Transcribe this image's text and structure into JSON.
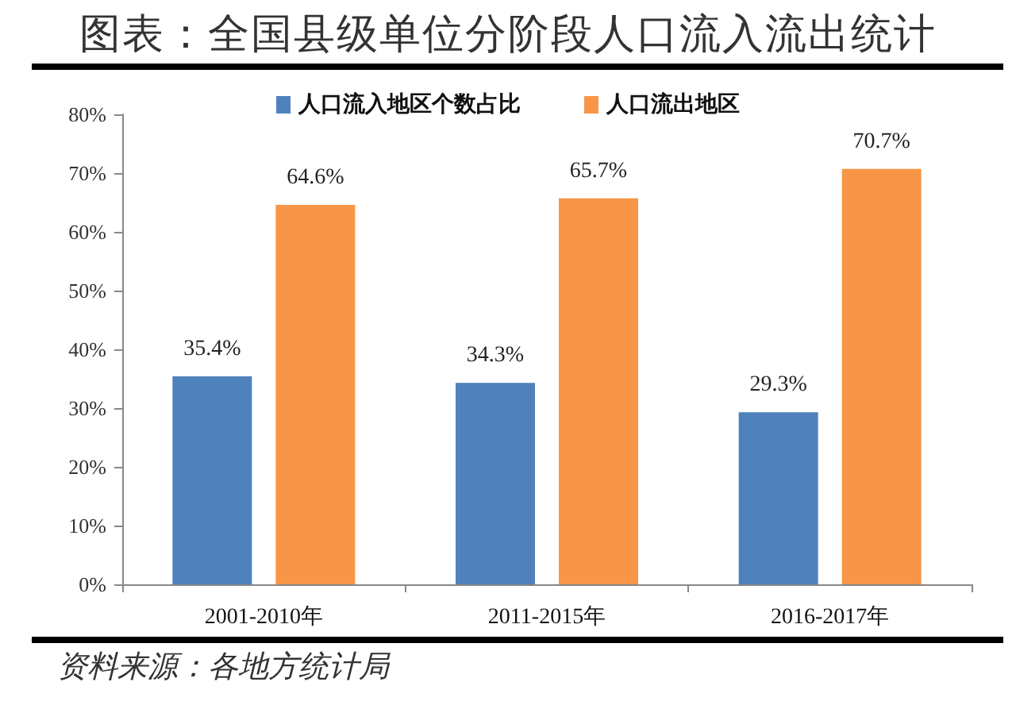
{
  "chart_data": {
    "type": "bar",
    "title": "图表：全国县级单位分阶段人口流入流出统计",
    "categories": [
      "2001-2010年",
      "2011-2015年",
      "2016-2017年"
    ],
    "series": [
      {
        "name": "人口流入地区个数占比",
        "color": "#4f81bd",
        "values": [
          35.4,
          34.3,
          29.3
        ],
        "value_labels": [
          "35.4%",
          "34.3%",
          "29.3%"
        ]
      },
      {
        "name": "人口流出地区",
        "color": "#f79646",
        "values": [
          64.6,
          65.7,
          70.7
        ],
        "value_labels": [
          "64.6%",
          "65.7%",
          "70.7%"
        ]
      }
    ],
    "ylim": [
      0,
      80
    ],
    "yticks": [
      {
        "value": 0,
        "label": "0%"
      },
      {
        "value": 10,
        "label": "10%"
      },
      {
        "value": 20,
        "label": "20%"
      },
      {
        "value": 30,
        "label": "30%"
      },
      {
        "value": 40,
        "label": "40%"
      },
      {
        "value": 50,
        "label": "50%"
      },
      {
        "value": 60,
        "label": "60%"
      },
      {
        "value": 70,
        "label": "70%"
      },
      {
        "value": 80,
        "label": "80%"
      }
    ],
    "legend": "top",
    "annotations": [
      "资料来源：各地方统计局"
    ]
  }
}
